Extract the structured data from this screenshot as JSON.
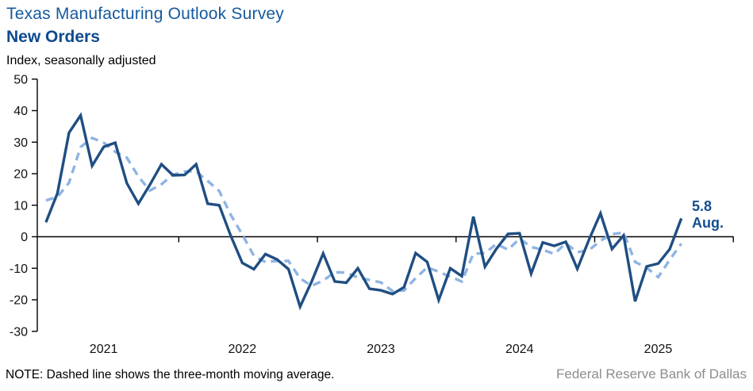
{
  "header": {
    "title": "Texas Manufacturing Outlook Survey",
    "subtitle": "New Orders",
    "unit_label": "Index, seasonally adjusted"
  },
  "annotation": {
    "value": "5.8",
    "month": "Aug."
  },
  "footer": {
    "note": "NOTE: Dashed line shows the three-month  moving average.",
    "source": "Federal Reserve Bank of Dallas"
  },
  "colors": {
    "title": "#155a9e",
    "subtitle": "#0e4a8f",
    "line": "#1f4e82",
    "moving_average": "#8eb4e3",
    "annotation": "#134f8f",
    "axis": "#000000",
    "source_text": "#8c8c8c"
  },
  "chart_data": {
    "type": "line",
    "title": "Texas Manufacturing Outlook Survey — New Orders",
    "ylabel": "Index, seasonally adjusted",
    "ylim": [
      -30,
      50
    ],
    "yticks": [
      50,
      40,
      30,
      20,
      10,
      0,
      -10,
      -20,
      -30
    ],
    "grid": false,
    "legend_position": "none",
    "x_start": "2021-01",
    "x_end": "2025-08",
    "year_labels": [
      "2021",
      "2022",
      "2023",
      "2024",
      "2025"
    ],
    "last_point_label": "5.8 Aug.",
    "series": [
      {
        "name": "New orders index, monthly",
        "style": "solid",
        "values": [
          4.6,
          13.8,
          33.0,
          38.5,
          22.5,
          28.5,
          29.8,
          17.0,
          10.5,
          16.5,
          23.0,
          19.5,
          19.6,
          23.0,
          10.5,
          10.0,
          0.3,
          -8.3,
          -10.3,
          -5.5,
          -7.2,
          -10.3,
          -22.2,
          -14.2,
          -5.3,
          -14.2,
          -14.6,
          -10.0,
          -16.5,
          -17.0,
          -18.2,
          -16.0,
          -5.2,
          -8.0,
          -20.1,
          -10.0,
          -12.5,
          6.4,
          -9.5,
          -3.8,
          0.9,
          1.1,
          -11.7,
          -1.8,
          -2.9,
          -1.6,
          -10.2,
          -1.0,
          7.4,
          -3.9,
          0.4,
          -20.5,
          -9.4,
          -8.5,
          -3.9,
          5.8
        ]
      },
      {
        "name": "Three-month moving average",
        "style": "dashed",
        "derived": "3-month moving average of monthly series",
        "ma_seed_prior_months": [
          10.5,
          19.5
        ]
      }
    ]
  }
}
